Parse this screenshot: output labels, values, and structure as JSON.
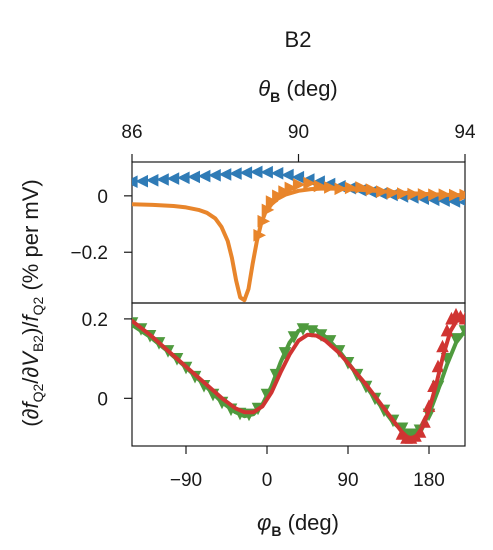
{
  "chart_data": [
    {
      "type": "scatter",
      "panel": "top",
      "title": "B2",
      "xlabel": "θB (deg)",
      "xlabel_parts": {
        "sym": "θ",
        "sub": "B",
        "unit": " (deg)"
      },
      "xlim": [
        86,
        94
      ],
      "xticks": [
        "86",
        "90",
        "94"
      ],
      "xtick_values": [
        86,
        90,
        94
      ],
      "x_axis_position": "top",
      "ylim": [
        -0.38,
        0.12
      ],
      "yticks": [
        "0",
        "−0.2"
      ],
      "ytick_values": [
        0,
        -0.2
      ],
      "colors": {
        "blue": "#2f7bb6",
        "orange": "#e8852b"
      },
      "series": [
        {
          "color": "#2f7bb6",
          "marker": "triangle-left",
          "x": [
            86.0,
            86.25,
            86.5,
            86.75,
            87.0,
            87.25,
            87.5,
            87.75,
            88.0,
            88.25,
            88.5,
            88.75,
            89.0,
            89.25,
            89.5,
            89.75,
            90.0,
            90.25,
            90.5,
            90.75,
            91.0,
            91.25,
            91.5,
            91.75,
            92.0,
            92.25,
            92.5,
            92.75,
            93.0,
            93.25,
            93.5,
            93.75,
            94.0
          ],
          "y": [
            0.05,
            0.052,
            0.055,
            0.058,
            0.061,
            0.064,
            0.067,
            0.07,
            0.073,
            0.076,
            0.079,
            0.082,
            0.085,
            0.084,
            0.08,
            0.074,
            0.066,
            0.058,
            0.05,
            0.042,
            0.034,
            0.027,
            0.02,
            0.014,
            0.008,
            0.003,
            -0.002,
            -0.006,
            -0.01,
            -0.014,
            -0.017,
            -0.02,
            -0.023
          ]
        },
        {
          "color": "#e8852b",
          "marker": "triangle-right",
          "x": [
            89.05,
            89.15,
            89.25,
            89.35,
            89.5,
            89.65,
            89.8,
            90.0,
            90.25,
            90.5,
            90.75,
            91.0,
            91.25,
            91.5,
            91.75,
            92.0,
            92.25,
            92.5,
            92.75,
            93.0,
            93.25,
            93.5,
            93.75,
            94.0
          ],
          "y": [
            -0.14,
            -0.09,
            -0.05,
            -0.02,
            0.0,
            0.015,
            0.028,
            0.04,
            0.045,
            0.035,
            0.03,
            0.025,
            0.028,
            0.03,
            0.022,
            0.015,
            0.01,
            0.008,
            0.006,
            0.005,
            0.004,
            0.004,
            0.003,
            0.003
          ]
        }
      ],
      "fit": {
        "color": "#e8852b",
        "x": [
          86.0,
          86.5,
          87.0,
          87.3,
          87.6,
          87.8,
          88.0,
          88.15,
          88.3,
          88.4,
          88.5,
          88.6,
          88.7,
          88.8,
          88.9,
          89.0,
          89.1,
          89.2,
          89.35,
          89.5,
          89.7,
          90.0,
          90.3,
          90.6,
          91.0,
          91.5,
          92.0,
          92.5,
          93.0,
          93.5,
          94.0
        ],
        "y": [
          -0.03,
          -0.032,
          -0.036,
          -0.041,
          -0.05,
          -0.06,
          -0.08,
          -0.11,
          -0.16,
          -0.22,
          -0.3,
          -0.36,
          -0.37,
          -0.33,
          -0.24,
          -0.16,
          -0.1,
          -0.06,
          -0.03,
          -0.01,
          0.005,
          0.018,
          0.024,
          0.026,
          0.025,
          0.021,
          0.016,
          0.011,
          0.007,
          0.004,
          0.002
        ]
      }
    },
    {
      "type": "scatter",
      "panel": "bottom",
      "xlabel": "φB (deg)",
      "xlabel_parts": {
        "sym": "φ",
        "sub": "B",
        "unit": " (deg)"
      },
      "xlim": [
        -150,
        220
      ],
      "xticks": [
        "−90",
        "0",
        "90",
        "180"
      ],
      "xtick_values": [
        -90,
        0,
        90,
        180
      ],
      "ylim": [
        -0.12,
        0.24
      ],
      "yticks": [
        "0.2",
        "0"
      ],
      "ytick_values": [
        0.2,
        0
      ],
      "shared_ylabel": "(∂fQ2/∂VB2)/fQ2 (% per mV)",
      "ylabel_parts": [
        {
          "t": "(∂",
          "italic": false
        },
        {
          "t": "f",
          "italic": true
        },
        {
          "t": "Q2",
          "sub": true
        },
        {
          "t": "/∂",
          "italic": false
        },
        {
          "t": "V",
          "italic": true
        },
        {
          "t": "B2",
          "sub": true
        },
        {
          "t": ")/",
          "italic": false
        },
        {
          "t": "f",
          "italic": true
        },
        {
          "t": "Q2",
          "sub": true
        },
        {
          "t": " (% per mV)",
          "italic": false
        }
      ],
      "colors": {
        "green": "#4f9a3e",
        "red": "#d03432"
      },
      "series": [
        {
          "color": "#4f9a3e",
          "marker": "triangle-down",
          "x": [
            -150,
            -140,
            -130,
            -120,
            -110,
            -100,
            -90,
            -80,
            -70,
            -60,
            -50,
            -40,
            -30,
            -20,
            -10,
            0,
            10,
            20,
            30,
            40,
            50,
            60,
            70,
            80,
            90,
            100,
            110,
            120,
            130,
            140,
            150,
            160,
            170,
            180,
            190,
            200,
            210,
            220
          ],
          "y": [
            0.19,
            0.175,
            0.158,
            0.14,
            0.12,
            0.1,
            0.078,
            0.055,
            0.032,
            0.01,
            -0.01,
            -0.027,
            -0.038,
            -0.04,
            -0.025,
            0.01,
            0.06,
            0.115,
            0.155,
            0.175,
            0.17,
            0.16,
            0.145,
            0.12,
            0.09,
            0.06,
            0.03,
            0.0,
            -0.03,
            -0.055,
            -0.075,
            -0.09,
            -0.08,
            -0.04,
            0.03,
            0.1,
            0.15,
            0.17
          ]
        },
        {
          "color": "#d03432",
          "marker": "triangle-up",
          "x": [
            150,
            155,
            160,
            165,
            170,
            175,
            180,
            185,
            190,
            195,
            200,
            205,
            210,
            215,
            220
          ],
          "y": [
            -0.09,
            -0.1,
            -0.1,
            -0.095,
            -0.085,
            -0.06,
            -0.02,
            0.03,
            0.08,
            0.13,
            0.17,
            0.2,
            0.21,
            0.205,
            0.2
          ]
        }
      ],
      "fits": [
        {
          "color": "#4f9a3e",
          "x": [
            -150,
            -130,
            -110,
            -90,
            -70,
            -50,
            -35,
            -25,
            -15,
            -5,
            5,
            15,
            25,
            35,
            45,
            55,
            65,
            80,
            95,
            110,
            125,
            140,
            150,
            160,
            170,
            180,
            190,
            200,
            210,
            220
          ],
          "y": [
            0.185,
            0.155,
            0.118,
            0.078,
            0.035,
            -0.01,
            -0.035,
            -0.045,
            -0.04,
            -0.015,
            0.03,
            0.09,
            0.14,
            0.17,
            0.178,
            0.172,
            0.155,
            0.12,
            0.075,
            0.03,
            -0.015,
            -0.06,
            -0.08,
            -0.09,
            -0.078,
            -0.04,
            0.02,
            0.085,
            0.14,
            0.17
          ]
        },
        {
          "color": "#d03432",
          "x": [
            -150,
            -130,
            -110,
            -90,
            -70,
            -50,
            -35,
            -25,
            -15,
            -5,
            5,
            15,
            25,
            35,
            45,
            55,
            65,
            80,
            95,
            110,
            125,
            140,
            150,
            157,
            165,
            172,
            180,
            188,
            196,
            204,
            212,
            220
          ],
          "y": [
            0.195,
            0.16,
            0.12,
            0.08,
            0.04,
            0.0,
            -0.025,
            -0.035,
            -0.035,
            -0.02,
            0.015,
            0.065,
            0.11,
            0.145,
            0.16,
            0.158,
            0.145,
            0.115,
            0.075,
            0.035,
            -0.01,
            -0.055,
            -0.085,
            -0.1,
            -0.098,
            -0.075,
            -0.03,
            0.035,
            0.11,
            0.17,
            0.2,
            0.205
          ]
        }
      ]
    }
  ]
}
